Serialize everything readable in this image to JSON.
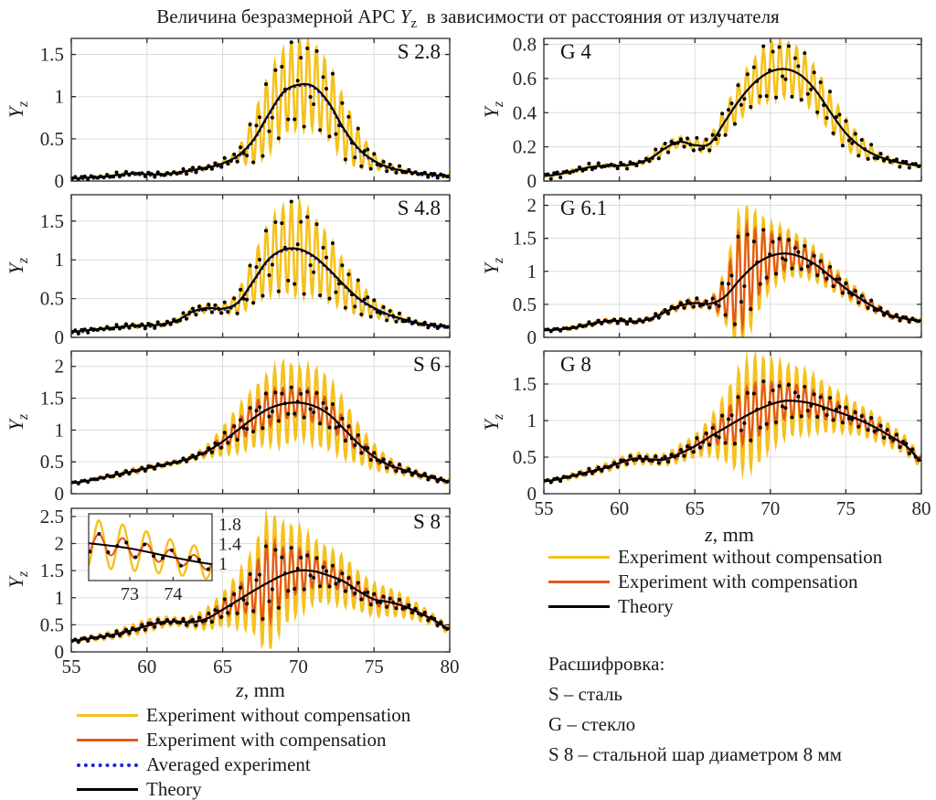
{
  "title": {
    "pre": "Величина безразмерной АРС ",
    "sym": "Y",
    "sub": "z",
    "post": "  в зависимости от расстояния от излучателя"
  },
  "axis": {
    "ylabel_sym": "Y",
    "ylabel_sub": "z",
    "xlabel_sym": "z",
    "xlabel_rest": ", mm"
  },
  "colors": {
    "experiment_without_compensation": "#F5C11E",
    "experiment_with_compensation": "#E3591B",
    "averaged_experiment": "#2222CC",
    "theory": "#000000",
    "grid": "#DCDCDC",
    "axis_box": "#2B2B2B",
    "tick_text": "#262626"
  },
  "legend_left": {
    "items": [
      {
        "label": "Experiment without compensation",
        "style": "yellow-solid"
      },
      {
        "label": "Experiment with compensation",
        "style": "orange-solid"
      },
      {
        "label": "Averaged experiment",
        "style": "blue-dotted"
      },
      {
        "label": "Theory",
        "style": "black-solid"
      }
    ]
  },
  "legend_right": {
    "items": [
      {
        "label": "Experiment without compensation",
        "style": "yellow-solid"
      },
      {
        "label": "Experiment with compensation",
        "style": "orange-solid"
      },
      {
        "label": "Theory",
        "style": "black-solid"
      }
    ]
  },
  "decode": {
    "title": "Расшифровка:",
    "lines": [
      "S – сталь",
      "G – стекло",
      "S 8 – стальной шар диаметром 8 мм"
    ]
  },
  "chart_data": [
    {
      "id": "s28",
      "label": "S 2.8",
      "label_corner": "right",
      "type": "line",
      "xlabel": "z, mm",
      "ylabel": "Yz",
      "xlim": [
        55,
        80
      ],
      "xticks": [
        55,
        60,
        65,
        70,
        75,
        80
      ],
      "xtick_labels_visible": false,
      "ylim": [
        0,
        1.69
      ],
      "yticks": [
        0,
        0.5,
        1,
        1.5
      ],
      "x_grid_mm": 1,
      "osc_period_mm": 0.55,
      "dots_on": "yellow",
      "has_blue_avg": true,
      "theory": [
        0.03,
        0.04,
        0.05,
        0.07,
        0.09,
        0.08,
        0.08,
        0.1,
        0.13,
        0.16,
        0.21,
        0.3,
        0.48,
        0.78,
        1.05,
        1.14,
        1.12,
        0.93,
        0.62,
        0.38,
        0.24,
        0.16,
        0.12,
        0.09,
        0.07,
        0.06
      ],
      "yellow_amp": [
        0.02,
        0.02,
        0.02,
        0.02,
        0.02,
        0.02,
        0.02,
        0.02,
        0.03,
        0.03,
        0.04,
        0.08,
        0.28,
        0.45,
        0.5,
        0.52,
        0.5,
        0.44,
        0.36,
        0.22,
        0.1,
        0.05,
        0.03,
        0.02,
        0.02,
        0.02
      ],
      "orange_amp": null
    },
    {
      "id": "s48",
      "label": "S 4.8",
      "label_corner": "right",
      "type": "line",
      "xlabel": "z, mm",
      "ylabel": "Yz",
      "xlim": [
        55,
        80
      ],
      "xticks": [
        55,
        60,
        65,
        70,
        75,
        80
      ],
      "xtick_labels_visible": false,
      "ylim": [
        0,
        1.84
      ],
      "yticks": [
        0,
        0.5,
        1,
        1.5
      ],
      "x_grid_mm": 1,
      "osc_period_mm": 0.55,
      "dots_on": "yellow",
      "has_blue_avg": true,
      "theory": [
        0.07,
        0.09,
        0.11,
        0.13,
        0.15,
        0.15,
        0.17,
        0.22,
        0.33,
        0.38,
        0.37,
        0.45,
        0.72,
        1.0,
        1.13,
        1.14,
        1.05,
        0.88,
        0.68,
        0.5,
        0.38,
        0.29,
        0.23,
        0.18,
        0.15,
        0.14
      ],
      "yellow_amp": [
        0.02,
        0.02,
        0.02,
        0.02,
        0.03,
        0.03,
        0.03,
        0.04,
        0.05,
        0.06,
        0.06,
        0.15,
        0.3,
        0.45,
        0.55,
        0.6,
        0.5,
        0.42,
        0.3,
        0.22,
        0.12,
        0.08,
        0.04,
        0.03,
        0.02,
        0.02
      ],
      "orange_amp": null
    },
    {
      "id": "s6",
      "label": "S 6",
      "label_corner": "right",
      "type": "line",
      "xlabel": "z, mm",
      "ylabel": "Yz",
      "xlim": [
        55,
        80
      ],
      "xticks": [
        55,
        60,
        65,
        70,
        75,
        80
      ],
      "xtick_labels_visible": false,
      "ylim": [
        0,
        2.24
      ],
      "yticks": [
        0,
        0.5,
        1,
        1.5,
        2
      ],
      "x_grid_mm": 1,
      "osc_period_mm": 0.55,
      "dots_on": "orange",
      "has_blue_avg": false,
      "theory": [
        0.17,
        0.2,
        0.25,
        0.3,
        0.35,
        0.4,
        0.45,
        0.5,
        0.57,
        0.67,
        0.82,
        1.0,
        1.18,
        1.33,
        1.41,
        1.43,
        1.38,
        1.25,
        1.02,
        0.78,
        0.58,
        0.45,
        0.37,
        0.3,
        0.24,
        0.19
      ],
      "yellow_amp": [
        0.02,
        0.02,
        0.03,
        0.04,
        0.05,
        0.05,
        0.04,
        0.04,
        0.05,
        0.1,
        0.22,
        0.35,
        0.45,
        0.55,
        0.65,
        0.55,
        0.6,
        0.55,
        0.45,
        0.3,
        0.2,
        0.12,
        0.08,
        0.06,
        0.05,
        0.04
      ],
      "orange_amp": [
        0.01,
        0.01,
        0.02,
        0.02,
        0.03,
        0.03,
        0.02,
        0.02,
        0.03,
        0.05,
        0.1,
        0.16,
        0.22,
        0.28,
        0.25,
        0.22,
        0.25,
        0.22,
        0.18,
        0.12,
        0.08,
        0.06,
        0.05,
        0.04,
        0.03,
        0.02
      ]
    },
    {
      "id": "s8",
      "label": "S 8",
      "label_corner": "right",
      "type": "line",
      "xlabel": "z, mm",
      "ylabel": "Yz",
      "xlim": [
        55,
        80
      ],
      "xticks": [
        55,
        60,
        65,
        70,
        75,
        80
      ],
      "xtick_labels_visible": true,
      "ylim": [
        0,
        2.65
      ],
      "yticks": [
        0,
        0.5,
        1,
        1.5,
        2,
        2.5
      ],
      "x_grid_mm": 1,
      "osc_period_mm": 0.55,
      "dots_on": "orange",
      "has_blue_avg": false,
      "theory": [
        0.2,
        0.24,
        0.28,
        0.33,
        0.4,
        0.48,
        0.55,
        0.56,
        0.55,
        0.62,
        0.78,
        0.95,
        1.12,
        1.28,
        1.42,
        1.5,
        1.49,
        1.41,
        1.3,
        1.12,
        0.97,
        0.92,
        0.84,
        0.72,
        0.58,
        0.42
      ],
      "yellow_amp": [
        0.04,
        0.05,
        0.06,
        0.08,
        0.1,
        0.12,
        0.1,
        0.08,
        0.12,
        0.2,
        0.3,
        0.5,
        0.75,
        1.25,
        0.95,
        0.8,
        0.6,
        0.5,
        0.45,
        0.35,
        0.3,
        0.25,
        0.2,
        0.15,
        0.1,
        0.08
      ],
      "orange_amp": [
        0.02,
        0.03,
        0.03,
        0.04,
        0.05,
        0.06,
        0.05,
        0.04,
        0.06,
        0.1,
        0.15,
        0.25,
        0.4,
        0.75,
        0.5,
        0.4,
        0.3,
        0.22,
        0.18,
        0.14,
        0.12,
        0.1,
        0.08,
        0.06,
        0.05,
        0.04
      ],
      "inset": {
        "xlim": [
          72.05,
          74.9
        ],
        "xticks": [
          73,
          74
        ],
        "ylim": [
          0.65,
          2.0
        ],
        "yticks": [
          1,
          1.4,
          1.8
        ]
      }
    },
    {
      "id": "g4",
      "label": "G 4",
      "label_corner": "left",
      "type": "line",
      "xlabel": "z, mm",
      "ylabel": "Yz",
      "xlim": [
        55,
        80
      ],
      "xticks": [
        55,
        60,
        65,
        70,
        75,
        80
      ],
      "xtick_labels_visible": false,
      "ylim": [
        0,
        0.835
      ],
      "yticks": [
        0,
        0.2,
        0.4,
        0.6,
        0.8
      ],
      "x_grid_mm": 1,
      "osc_period_mm": 0.55,
      "dots_on": "yellow",
      "has_blue_avg": false,
      "theory": [
        0.03,
        0.04,
        0.06,
        0.08,
        0.09,
        0.09,
        0.1,
        0.13,
        0.19,
        0.23,
        0.21,
        0.22,
        0.35,
        0.48,
        0.58,
        0.64,
        0.655,
        0.62,
        0.53,
        0.4,
        0.28,
        0.2,
        0.15,
        0.12,
        0.1,
        0.09
      ],
      "yellow_amp": [
        0.01,
        0.01,
        0.01,
        0.01,
        0.01,
        0.01,
        0.01,
        0.02,
        0.03,
        0.03,
        0.03,
        0.05,
        0.08,
        0.11,
        0.14,
        0.17,
        0.16,
        0.15,
        0.13,
        0.11,
        0.09,
        0.06,
        0.03,
        0.02,
        0.01,
        0.01
      ],
      "orange_amp": null
    },
    {
      "id": "g61",
      "label": "G 6.1",
      "label_corner": "left",
      "type": "line",
      "xlabel": "z, mm",
      "ylabel": "Yz",
      "xlim": [
        55,
        80
      ],
      "xticks": [
        55,
        60,
        65,
        70,
        75,
        80
      ],
      "xtick_labels_visible": false,
      "ylim": [
        0,
        2.16
      ],
      "yticks": [
        0,
        0.5,
        1,
        1.5,
        2
      ],
      "x_grid_mm": 1,
      "osc_period_mm": 0.55,
      "dots_on": "orange",
      "has_blue_avg": false,
      "theory": [
        0.11,
        0.12,
        0.15,
        0.2,
        0.24,
        0.25,
        0.24,
        0.28,
        0.38,
        0.48,
        0.52,
        0.51,
        0.62,
        0.88,
        1.1,
        1.23,
        1.27,
        1.22,
        1.1,
        0.92,
        0.74,
        0.58,
        0.44,
        0.33,
        0.28,
        0.25
      ],
      "yellow_amp": [
        0.02,
        0.02,
        0.03,
        0.04,
        0.04,
        0.04,
        0.04,
        0.04,
        0.05,
        0.07,
        0.08,
        0.09,
        0.4,
        1.05,
        0.8,
        0.5,
        0.38,
        0.3,
        0.25,
        0.2,
        0.15,
        0.12,
        0.08,
        0.05,
        0.04,
        0.03
      ],
      "orange_amp": [
        0.01,
        0.01,
        0.02,
        0.02,
        0.03,
        0.03,
        0.03,
        0.03,
        0.04,
        0.05,
        0.06,
        0.07,
        0.3,
        0.75,
        0.55,
        0.35,
        0.25,
        0.2,
        0.16,
        0.13,
        0.1,
        0.08,
        0.06,
        0.04,
        0.03,
        0.02
      ]
    },
    {
      "id": "g8",
      "label": "G 8",
      "label_corner": "left",
      "type": "line",
      "xlabel": "z, mm",
      "ylabel": "Yz",
      "xlim": [
        55,
        80
      ],
      "xticks": [
        55,
        60,
        65,
        70,
        75,
        80
      ],
      "xtick_labels_visible": true,
      "ylim": [
        0,
        1.95
      ],
      "yticks": [
        0,
        0.5,
        1,
        1.5
      ],
      "x_grid_mm": 1,
      "osc_period_mm": 0.55,
      "dots_on": "orange",
      "has_blue_avg": false,
      "theory": [
        0.17,
        0.2,
        0.25,
        0.3,
        0.35,
        0.42,
        0.48,
        0.47,
        0.47,
        0.55,
        0.65,
        0.78,
        0.9,
        1.02,
        1.13,
        1.22,
        1.27,
        1.26,
        1.22,
        1.15,
        1.08,
        1.0,
        0.9,
        0.78,
        0.65,
        0.45
      ],
      "yellow_amp": [
        0.02,
        0.03,
        0.04,
        0.05,
        0.06,
        0.07,
        0.08,
        0.07,
        0.08,
        0.12,
        0.15,
        0.25,
        0.45,
        0.7,
        0.75,
        0.6,
        0.5,
        0.45,
        0.38,
        0.3,
        0.25,
        0.2,
        0.18,
        0.15,
        0.12,
        0.08
      ],
      "orange_amp": [
        0.01,
        0.02,
        0.02,
        0.03,
        0.03,
        0.04,
        0.04,
        0.04,
        0.04,
        0.06,
        0.08,
        0.12,
        0.22,
        0.35,
        0.38,
        0.3,
        0.25,
        0.22,
        0.18,
        0.15,
        0.12,
        0.1,
        0.09,
        0.08,
        0.06,
        0.04
      ]
    }
  ]
}
